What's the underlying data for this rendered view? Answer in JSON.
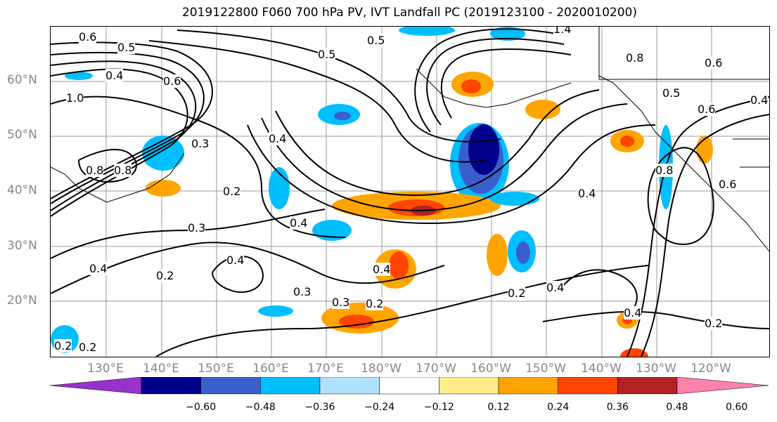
{
  "title": "2019122800 F060 700 hPa PV, IVT Landfall PC (2019123100 - 2020010200)",
  "lat_labels": [
    "60°N",
    "50°N",
    "40°N",
    "30°N",
    "20°N"
  ],
  "lon_labels": [
    "130°E",
    "140°E",
    "150°E",
    "160°E",
    "170°E",
    "180°W",
    "170°W",
    "160°W",
    "150°W",
    "140°W",
    "130°W",
    "120°W"
  ],
  "contour_labels": [
    "0.6",
    "0.5",
    "0.4",
    "1.0",
    "0.6",
    "0.5",
    "0.5",
    "1.4",
    "0.8",
    "0.6",
    "0.5",
    "0.4",
    "0.6",
    "0.3",
    "0.8",
    "0.8",
    "0.4",
    "0.2",
    "0.4",
    "0.3",
    "0.4",
    "0.4",
    "0.2",
    "0.4",
    "0.3",
    "0.3",
    "0.2",
    "0.4",
    "0.2",
    "0.4",
    "0.2",
    "0.4",
    "0.2",
    "0.2",
    "0.8",
    "0.6"
  ],
  "colorbar": {
    "ticks": [
      "−0.60",
      "−0.48",
      "−0.36",
      "−0.24",
      "−0.12",
      "0.12",
      "0.24",
      "0.36",
      "0.48",
      "0.60"
    ],
    "colors": [
      "#9932cc",
      "#00008b",
      "#3a5fcd",
      "#00bfff",
      "#b0e2ff",
      "#ffffff",
      "#ffec8b",
      "#ffa500",
      "#ff4500",
      "#b22222",
      "#ff82ab"
    ]
  }
}
